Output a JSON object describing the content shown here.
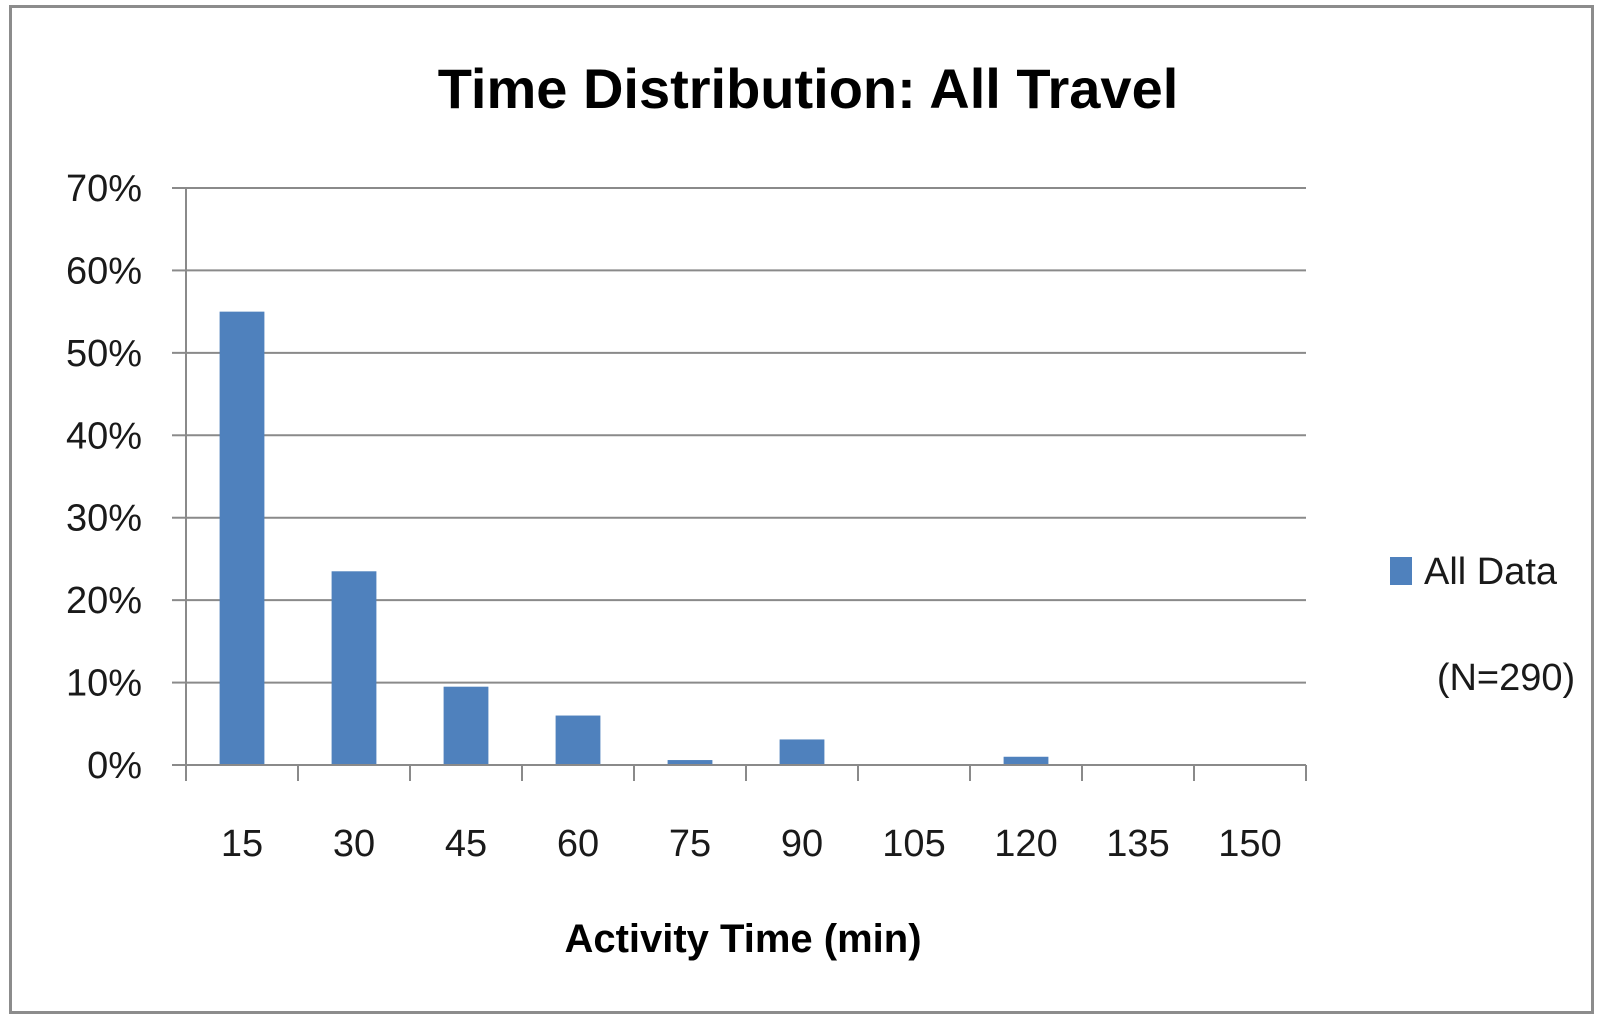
{
  "chart_data": {
    "type": "bar",
    "title": "Time Distribution: All Travel",
    "xlabel": "Activity Time (min)",
    "ylabel": "",
    "categories": [
      "15",
      "30",
      "45",
      "60",
      "75",
      "90",
      "105",
      "120",
      "135",
      "150"
    ],
    "series": [
      {
        "name": "All Data",
        "values": [
          0.55,
          0.235,
          0.095,
          0.06,
          0.006,
          0.031,
          0,
          0.01,
          0,
          0
        ],
        "color": "#4f81bd"
      }
    ],
    "ylim": [
      0,
      0.7
    ],
    "yticks": [
      0,
      0.1,
      0.2,
      0.3,
      0.4,
      0.5,
      0.6,
      0.7
    ],
    "ytick_labels": [
      "0%",
      "10%",
      "20%",
      "30%",
      "40%",
      "50%",
      "60%",
      "70%"
    ],
    "grid": true,
    "legend_position": "right",
    "annotation": "(N=290)"
  }
}
